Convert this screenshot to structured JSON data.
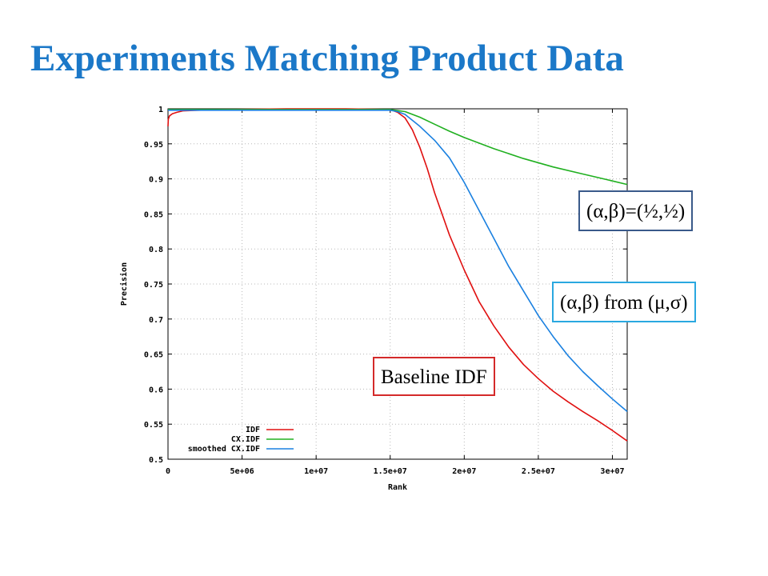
{
  "slide": {
    "title": "Experiments Matching Product Data"
  },
  "annotations": {
    "half": "(α,β)=(½,½)",
    "musigma": "(α,β) from (μ,σ)",
    "baseline": "Baseline IDF"
  },
  "colors": {
    "title": "#1b78c8",
    "idf": "#e01010",
    "cx_idf": "#20b020",
    "smoothed": "#1a80e0"
  },
  "chart_data": {
    "type": "line",
    "xlabel": "Rank",
    "ylabel": "Precision",
    "xlim": [
      0,
      31000000
    ],
    "ylim": [
      0.5,
      1.0
    ],
    "x_ticks": [
      0,
      5000000,
      10000000,
      15000000,
      20000000,
      25000000,
      30000000
    ],
    "x_tick_labels": [
      "0",
      "5e+06",
      "1e+07",
      "1.5e+07",
      "2e+07",
      "2.5e+07",
      "3e+07"
    ],
    "y_ticks": [
      0.5,
      0.55,
      0.6,
      0.65,
      0.7,
      0.75,
      0.8,
      0.85,
      0.9,
      0.95,
      1.0
    ],
    "y_tick_labels": [
      "0.5",
      "0.55",
      "0.6",
      "0.65",
      "0.7",
      "0.75",
      "0.8",
      "0.85",
      "0.9",
      "0.95",
      "1"
    ],
    "grid": true,
    "legend_position": "bottom-left",
    "series": [
      {
        "name": "IDF",
        "color": "#e01010",
        "x": [
          0,
          20000,
          100000,
          300000,
          600000,
          1000000,
          2000000,
          4000000,
          8000000,
          12000000,
          15000000,
          15500000,
          16000000,
          16500000,
          17000000,
          17500000,
          18000000,
          19000000,
          20000000,
          21000000,
          22000000,
          23000000,
          24000000,
          25000000,
          26000000,
          27000000,
          28000000,
          29000000,
          30000000,
          31000000
        ],
        "y": [
          0.975,
          0.985,
          0.99,
          0.993,
          0.995,
          0.997,
          0.998,
          0.999,
          1.0,
          1.0,
          0.999,
          0.995,
          0.987,
          0.97,
          0.945,
          0.915,
          0.88,
          0.82,
          0.77,
          0.725,
          0.69,
          0.66,
          0.635,
          0.615,
          0.597,
          0.582,
          0.568,
          0.555,
          0.541,
          0.526
        ]
      },
      {
        "name": "CX.IDF",
        "color": "#20b020",
        "x": [
          0,
          5000000,
          10000000,
          15000000,
          16000000,
          17000000,
          18000000,
          19000000,
          20000000,
          22000000,
          24000000,
          26000000,
          28000000,
          30000000,
          31000000
        ],
        "y": [
          0.999,
          0.999,
          0.999,
          0.999,
          0.996,
          0.988,
          0.978,
          0.968,
          0.959,
          0.943,
          0.929,
          0.917,
          0.907,
          0.897,
          0.892
        ]
      },
      {
        "name": "smoothed CX.IDF",
        "color": "#1a80e0",
        "x": [
          0,
          5000000,
          10000000,
          15000000,
          15500000,
          16000000,
          17000000,
          18000000,
          19000000,
          20000000,
          21000000,
          22000000,
          23000000,
          24000000,
          25000000,
          26000000,
          27000000,
          28000000,
          29000000,
          30000000,
          31000000
        ],
        "y": [
          0.998,
          0.998,
          0.998,
          0.998,
          0.996,
          0.992,
          0.975,
          0.955,
          0.93,
          0.895,
          0.855,
          0.815,
          0.775,
          0.74,
          0.705,
          0.675,
          0.648,
          0.625,
          0.605,
          0.586,
          0.568
        ]
      }
    ]
  }
}
